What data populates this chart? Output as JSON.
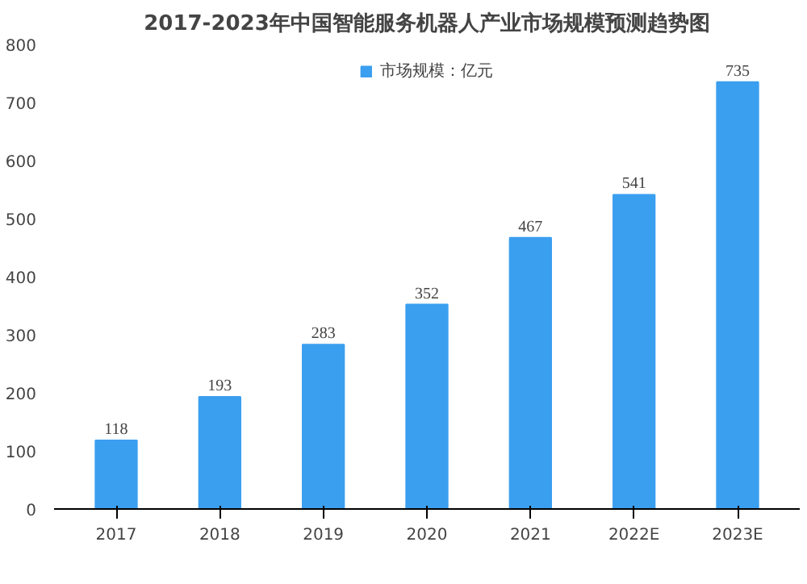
{
  "chart_data": {
    "type": "bar",
    "title": "2017-2023年中国智能服务机器人产业市场规模预测趋势图",
    "categories": [
      "2017",
      "2018",
      "2019",
      "2020",
      "2021",
      "2022E",
      "2023E"
    ],
    "series": [
      {
        "name": "市场规模：亿元",
        "color": "#3b9ff0",
        "values": [
          118,
          193,
          283,
          352,
          467,
          541,
          735
        ]
      }
    ],
    "ylim": [
      0,
      800
    ],
    "yticks": [
      0,
      100,
      200,
      300,
      400,
      500,
      600,
      700,
      800
    ],
    "data_labels": true,
    "legend": "top",
    "grid": false
  }
}
